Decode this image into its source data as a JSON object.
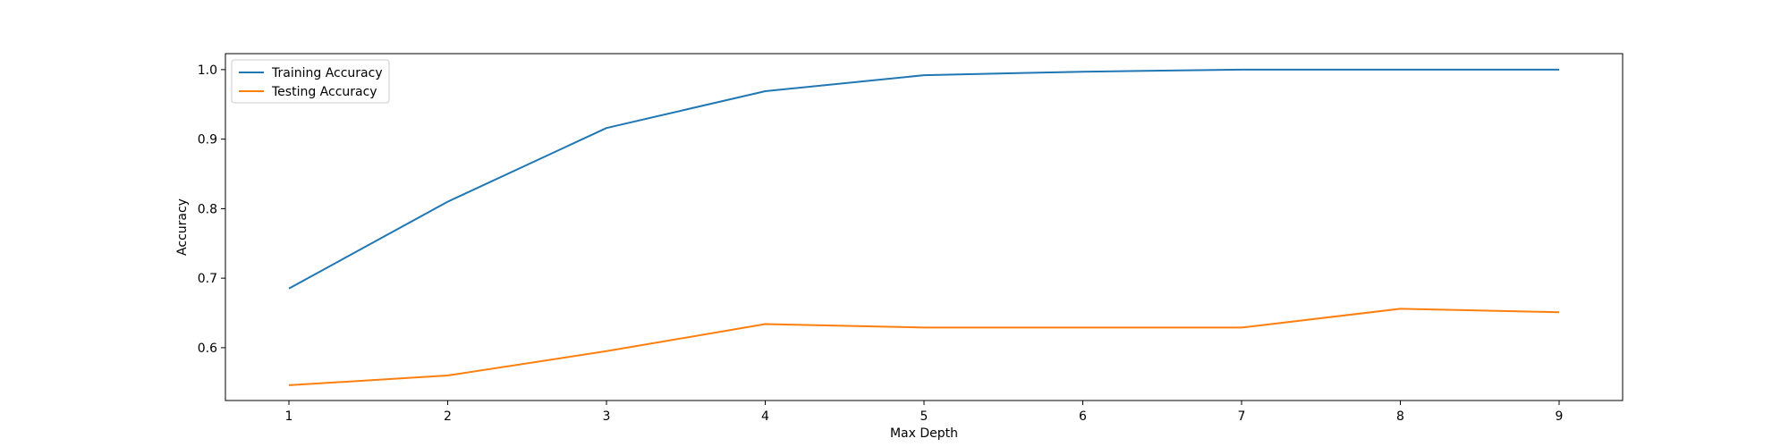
{
  "chart_data": {
    "type": "line",
    "title": "",
    "xlabel": "Max Depth",
    "ylabel": "Accuracy",
    "x": [
      1,
      2,
      3,
      4,
      5,
      6,
      7,
      8,
      9
    ],
    "xlim": [
      0.6,
      9.4
    ],
    "ylim": [
      0.524,
      1.023
    ],
    "xticks": [
      1,
      2,
      3,
      4,
      5,
      6,
      7,
      8,
      9
    ],
    "yticks": [
      0.6,
      0.7,
      0.8,
      0.9,
      1.0
    ],
    "ytick_labels": [
      "0.6",
      "0.7",
      "0.8",
      "0.9",
      "1.0"
    ],
    "grid": false,
    "legend_position": "top-left",
    "series": [
      {
        "name": "Training Accuracy",
        "color": "#1f77b4",
        "values": [
          0.685,
          0.81,
          0.916,
          0.969,
          0.992,
          0.997,
          1.0,
          1.0,
          1.0
        ]
      },
      {
        "name": "Testing Accuracy",
        "color": "#ff7f0e",
        "values": [
          0.546,
          0.56,
          0.595,
          0.634,
          0.629,
          0.629,
          0.629,
          0.656,
          0.651
        ]
      }
    ]
  }
}
